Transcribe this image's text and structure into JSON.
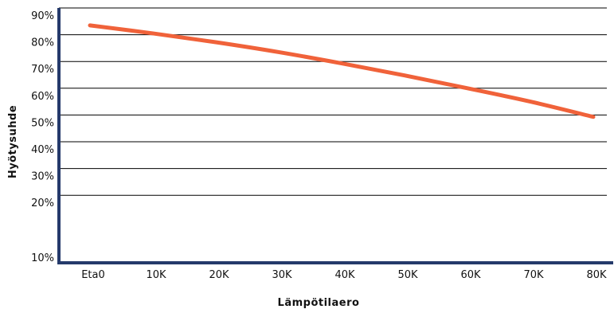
{
  "chart_data": {
    "type": "line",
    "title": "",
    "xlabel": "Lämpötilaero",
    "ylabel": "Hyötysuhde",
    "categories": [
      "Eta0",
      "10K",
      "20K",
      "30K",
      "40K",
      "50K",
      "60K",
      "70K",
      "80K"
    ],
    "y_ticks": [
      "10%",
      "20%",
      "30%",
      "40%",
      "50%",
      "60%",
      "70%",
      "80%",
      "90%"
    ],
    "ylim": [
      10,
      90
    ],
    "grid": true,
    "series": [
      {
        "values": [
          83.5,
          80.5,
          77.2,
          73.5,
          69.3,
          64.8,
          60.0,
          55.0,
          49.3
        ]
      }
    ],
    "colors": {
      "line": "#f0623a",
      "axis": "#253a6b",
      "grid": "#000000"
    }
  }
}
